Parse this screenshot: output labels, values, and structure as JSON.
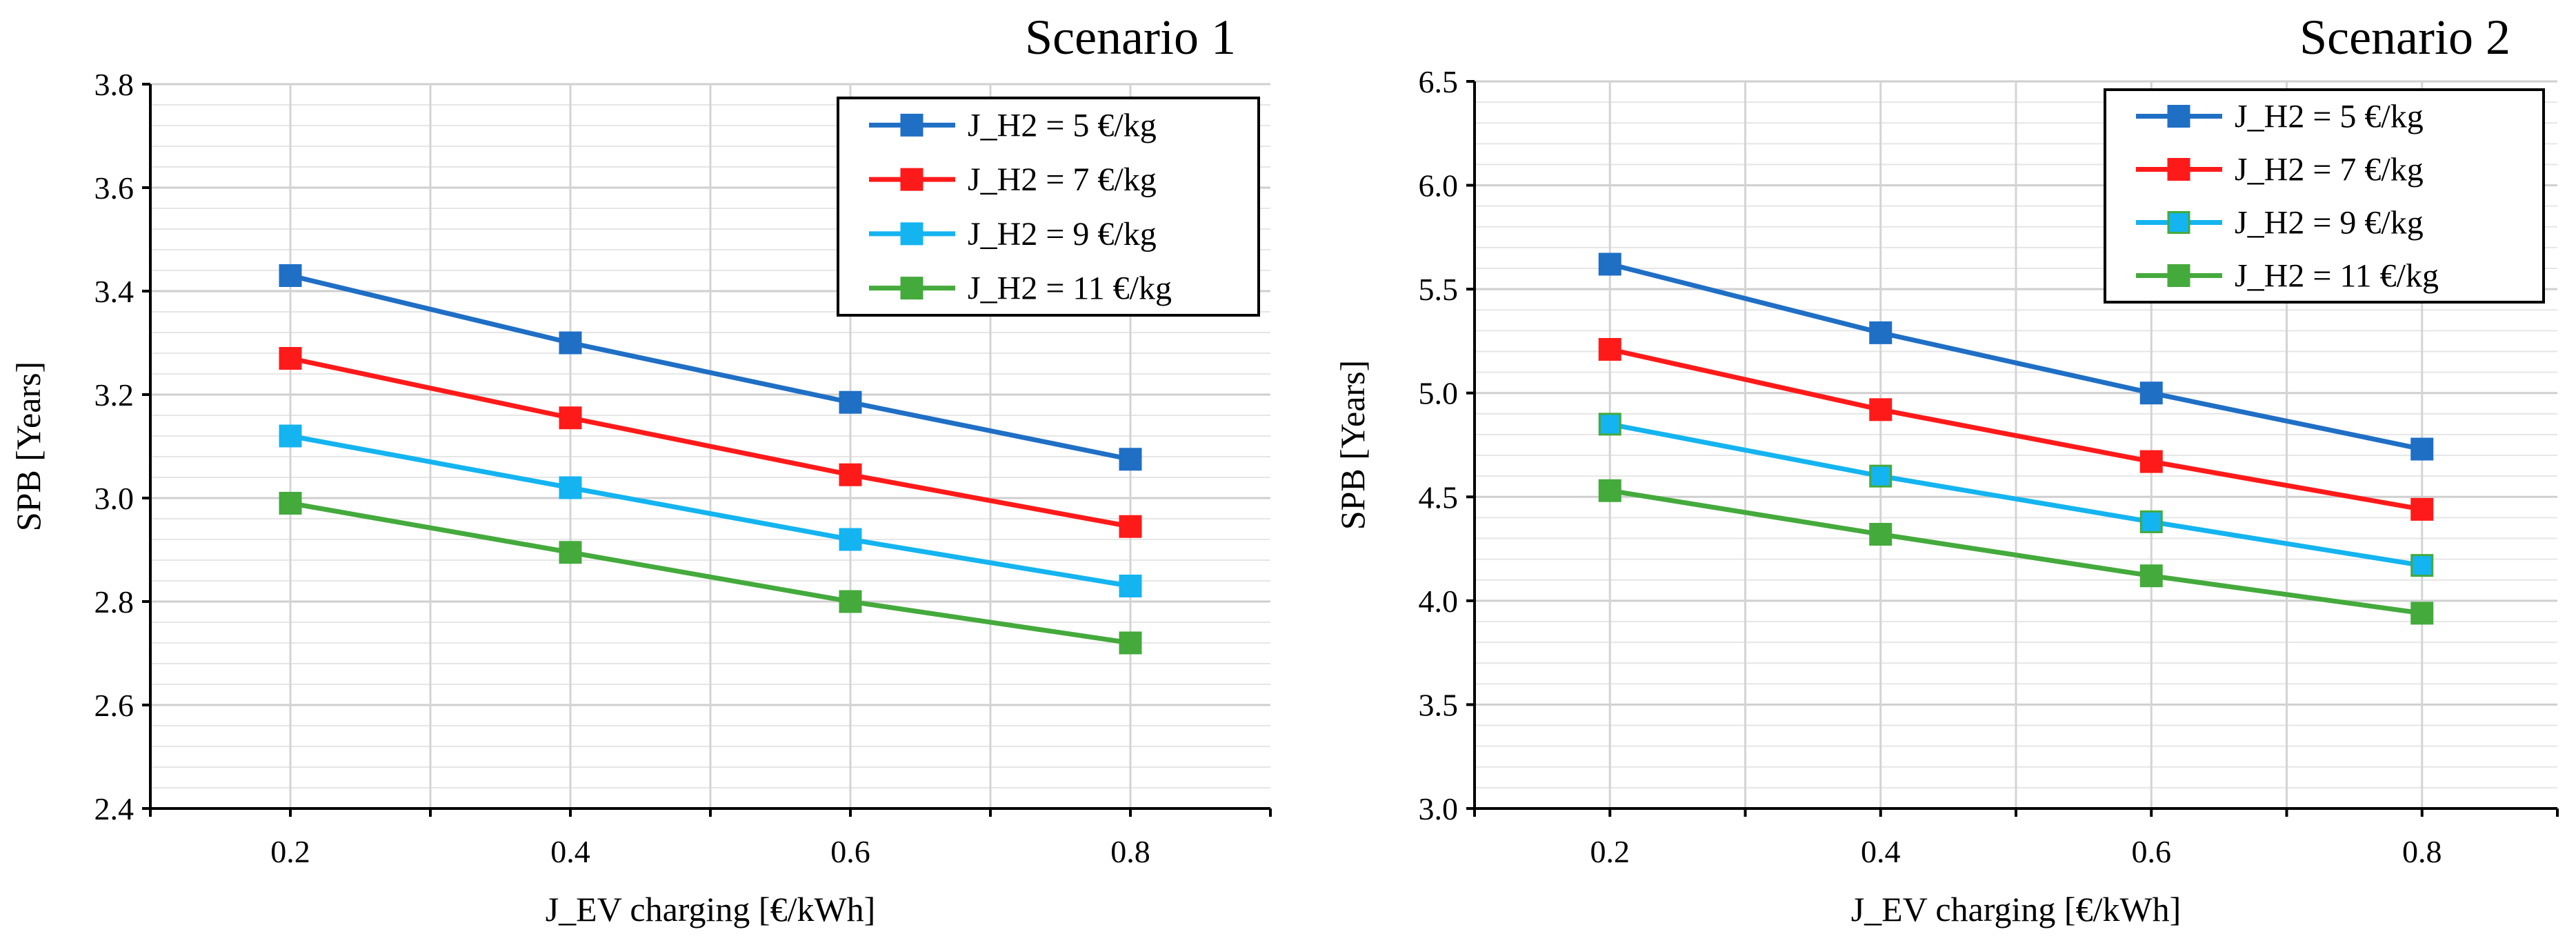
{
  "chart_data": [
    {
      "type": "line",
      "title": "Scenario 1",
      "xlabel": "J_EV charging [€/kWh]",
      "ylabel": "SPB [Years]",
      "xlim": [
        0.1,
        0.9
      ],
      "ylim": [
        2.4,
        3.8
      ],
      "x_ticks": [
        "0.2",
        "0.4",
        "0.6",
        "0.8"
      ],
      "y_ticks": [
        "2.4",
        "2.6",
        "2.8",
        "3.0",
        "3.2",
        "3.4",
        "3.6",
        "3.8"
      ],
      "grid": true,
      "legend_position": "top-right",
      "x": [
        0.2,
        0.4,
        0.6,
        0.8
      ],
      "series": [
        {
          "name": "J_H2 = 5 €/kg",
          "color": "#1f6fc5",
          "values": [
            3.43,
            3.3,
            3.185,
            3.075
          ]
        },
        {
          "name": "J_H2 = 7 €/kg",
          "color": "#ff1a1a",
          "values": [
            3.27,
            3.155,
            3.045,
            2.945
          ]
        },
        {
          "name": "J_H2 = 9 €/kg",
          "color": "#14b4f0",
          "values": [
            3.12,
            3.02,
            2.92,
            2.83
          ]
        },
        {
          "name": "J_H2 = 11 €/kg",
          "color": "#44aa3c",
          "values": [
            2.99,
            2.895,
            2.8,
            2.72
          ]
        }
      ]
    },
    {
      "type": "line",
      "title": "Scenario 2",
      "xlabel": "J_EV charging [€/kWh]",
      "ylabel": "SPB [Years]",
      "xlim": [
        0.1,
        0.9
      ],
      "ylim": [
        3.0,
        6.5
      ],
      "x_ticks": [
        "0.2",
        "0.4",
        "0.6",
        "0.8"
      ],
      "y_ticks": [
        "3.0",
        "3.5",
        "4.0",
        "4.5",
        "5.0",
        "5.5",
        "6.0",
        "6.5"
      ],
      "grid": true,
      "legend_position": "top-right",
      "x": [
        0.2,
        0.4,
        0.6,
        0.8
      ],
      "series": [
        {
          "name": "J_H2 = 5 €/kg",
          "color": "#1f6fc5",
          "values": [
            5.62,
            5.29,
            5.0,
            4.73
          ]
        },
        {
          "name": "J_H2 = 7 €/kg",
          "color": "#ff1a1a",
          "values": [
            5.21,
            4.92,
            4.67,
            4.44
          ]
        },
        {
          "name": "J_H2 = 9 €/kg",
          "color": "#14b4f0",
          "values": [
            4.85,
            4.6,
            4.38,
            4.17
          ]
        },
        {
          "name": "J_H2 = 11 €/kg",
          "color": "#44aa3c",
          "values": [
            4.53,
            4.32,
            4.12,
            3.94
          ]
        }
      ]
    }
  ]
}
